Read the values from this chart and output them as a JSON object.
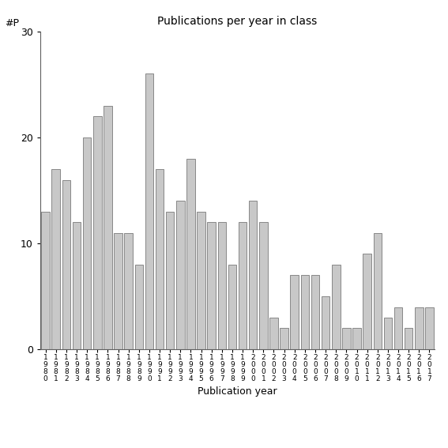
{
  "categories": [
    "1980",
    "1981",
    "1982",
    "1983",
    "1984",
    "1985",
    "1986",
    "1987",
    "1988",
    "1989",
    "1990",
    "1991",
    "1992",
    "1993",
    "1994",
    "1995",
    "1996",
    "1997",
    "1998",
    "1999",
    "2000",
    "2001",
    "2002",
    "2003",
    "2004",
    "2005",
    "2006",
    "2007",
    "2008",
    "2009",
    "2010",
    "2011",
    "2012",
    "2013",
    "2014",
    "2015",
    "2016",
    "2017"
  ],
  "values": [
    13,
    17,
    16,
    12,
    20,
    22,
    23,
    11,
    11,
    8,
    26,
    17,
    13,
    14,
    18,
    13,
    12,
    12,
    8,
    12,
    14,
    12,
    3,
    2,
    7,
    7,
    7,
    5,
    8,
    2,
    2,
    9,
    11,
    3,
    4,
    2,
    4,
    4
  ],
  "title": "Publications per year in class",
  "xlabel": "Publication year",
  "ylabel": "#P",
  "ylim": [
    0,
    30
  ],
  "yticks": [
    0,
    10,
    20,
    30
  ],
  "bar_color": "#c8c8c8",
  "bar_edgecolor": "#888888",
  "background_color": "#ffffff"
}
